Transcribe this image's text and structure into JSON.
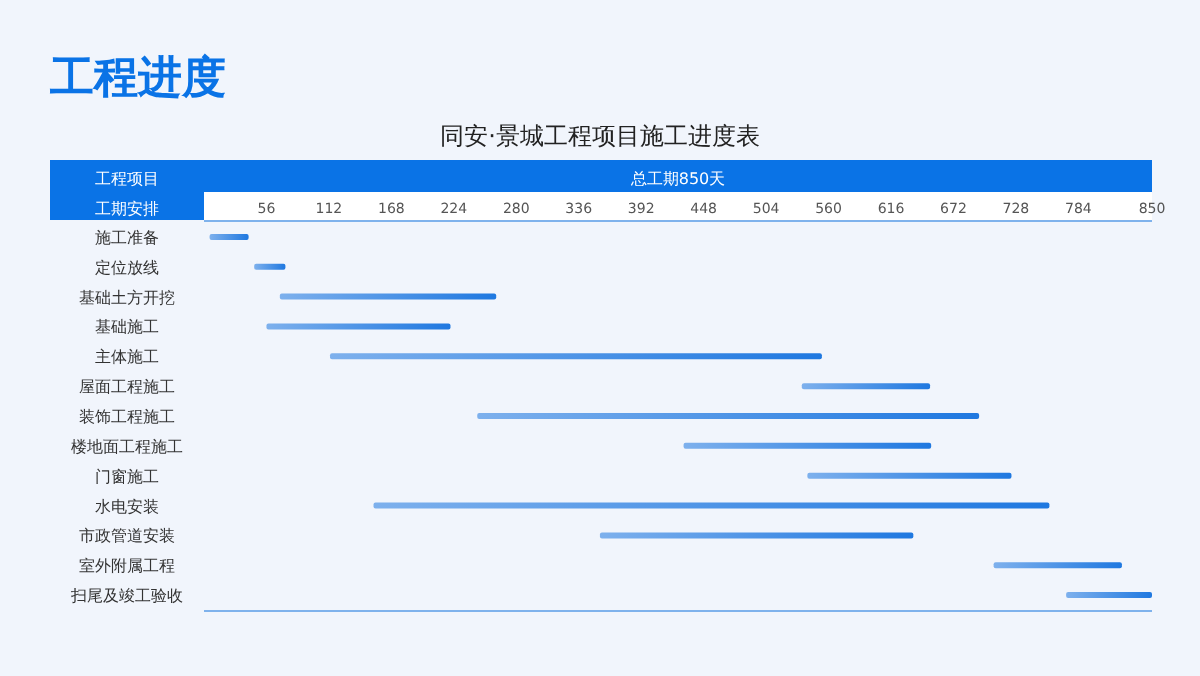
{
  "chart_data": {
    "type": "bar",
    "orientation": "horizontal",
    "title": "工程进度",
    "subtitle": "同安·景城工程项目施工进度表",
    "xlabel": "总工期850天",
    "ylabel": "工程项目",
    "annotations": [
      "工期安排"
    ],
    "categories": [
      "施工准备",
      "定位放线",
      "基础土方开挖",
      "基础施工",
      "主体施工",
      "屋面工程施工",
      "装饰工程施工",
      "楼地面工程施工",
      "门窗施工",
      "水电安装",
      "市政管道安装",
      "室外附属工程",
      "扫尾及竣工验收"
    ],
    "base": [
      5,
      45,
      68,
      56,
      113,
      536,
      245,
      430,
      541,
      152,
      355,
      708,
      773
    ],
    "values": [
      35,
      28,
      194,
      165,
      441,
      115,
      450,
      222,
      183,
      606,
      281,
      115,
      77
    ],
    "color": "#1f78e0",
    "xlim": [
      0,
      850
    ],
    "xticks": [
      56,
      112,
      168,
      224,
      280,
      336,
      392,
      448,
      504,
      560,
      616,
      672,
      728,
      784,
      850
    ],
    "grid": false
  }
}
